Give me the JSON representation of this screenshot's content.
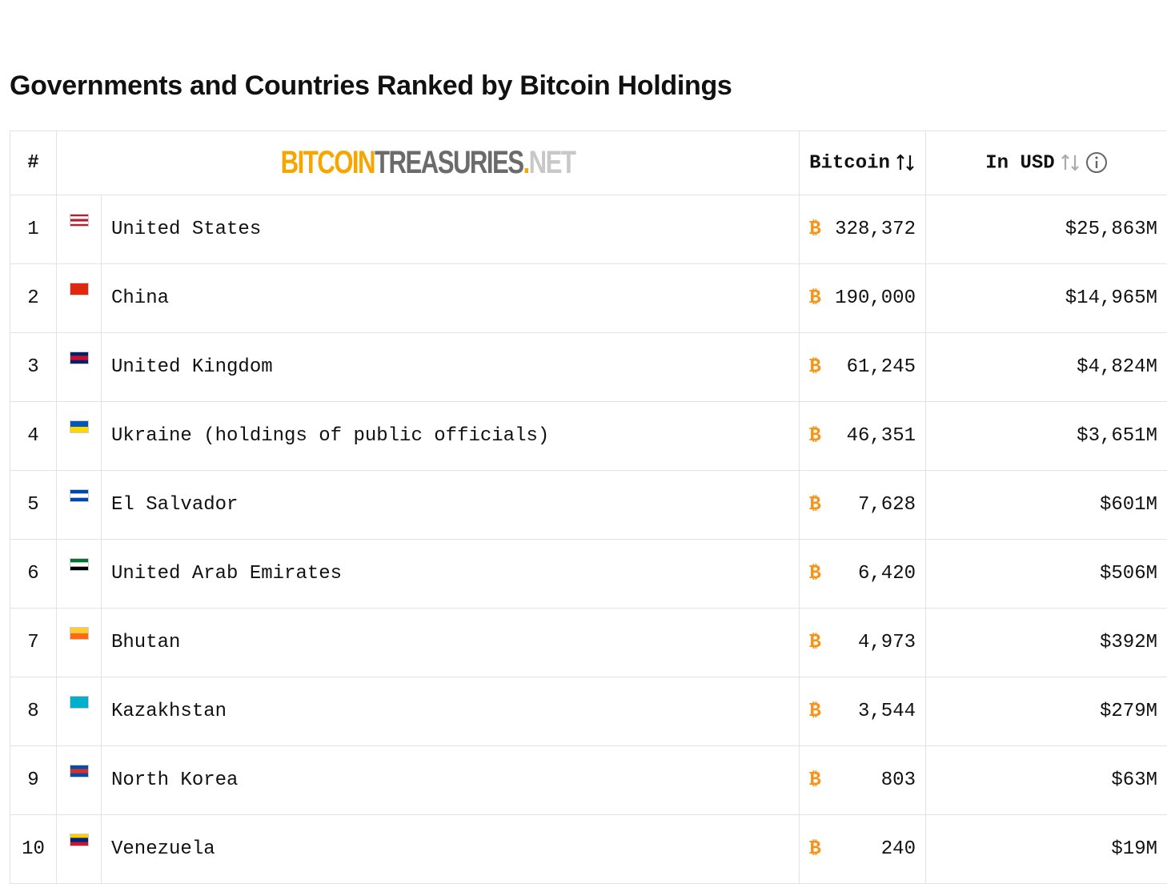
{
  "title": "Governments and Countries Ranked by Bitcoin Holdings",
  "table": {
    "header": {
      "rank": "#",
      "logo": [
        "BITCOIN",
        "TREASURIES",
        ".",
        "NET"
      ],
      "bitcoin": "Bitcoin",
      "usd": "In USD"
    },
    "btc_symbol": "₿",
    "rows": [
      {
        "rank": 1,
        "name": "United States",
        "bitcoin": "328,372",
        "usd": "$25,863M"
      },
      {
        "rank": 2,
        "name": "China",
        "bitcoin": "190,000",
        "usd": "$14,965M"
      },
      {
        "rank": 3,
        "name": "United Kingdom",
        "bitcoin": "61,245",
        "usd": "$4,824M"
      },
      {
        "rank": 4,
        "name": "Ukraine (holdings of public officials)",
        "bitcoin": "46,351",
        "usd": "$3,651M"
      },
      {
        "rank": 5,
        "name": "El Salvador",
        "bitcoin": "7,628",
        "usd": "$601M"
      },
      {
        "rank": 6,
        "name": "United Arab Emirates",
        "bitcoin": "6,420",
        "usd": "$506M"
      },
      {
        "rank": 7,
        "name": "Bhutan",
        "bitcoin": "4,973",
        "usd": "$392M"
      },
      {
        "rank": 8,
        "name": "Kazakhstan",
        "bitcoin": "3,544",
        "usd": "$279M"
      },
      {
        "rank": 9,
        "name": "North Korea",
        "bitcoin": "803",
        "usd": "$63M"
      },
      {
        "rank": 10,
        "name": "Venezuela",
        "bitcoin": "240",
        "usd": "$19M"
      }
    ]
  }
}
